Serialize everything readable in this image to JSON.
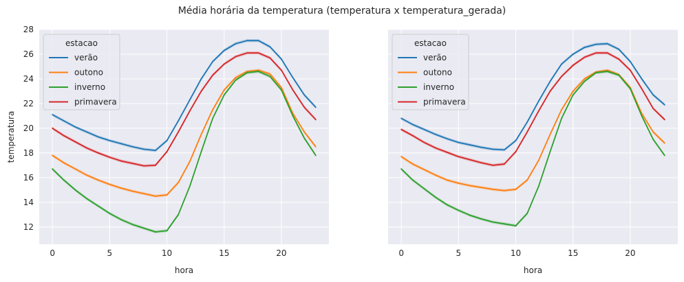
{
  "figure": {
    "title": "Média horária da temperatura (temperatura x temperatura_gerada)"
  },
  "colors": {
    "verão": "#1f77b4",
    "outono": "#ff7f0e",
    "inverno": "#2ca02c",
    "primavera": "#d62728",
    "axes_bg": "#eaeaf2",
    "grid": "#ffffff"
  },
  "chart_data": [
    {
      "type": "line",
      "xlabel": "hora",
      "ylabel": "temperatura",
      "xlim": [
        -1.15,
        24.15
      ],
      "ylim": [
        10.6,
        28.0
      ],
      "xticks": [
        0,
        5,
        10,
        15,
        20
      ],
      "yticks": [
        12,
        14,
        16,
        18,
        20,
        22,
        24,
        26,
        28
      ],
      "grid": true,
      "legend": {
        "title": "estacao",
        "placement": "top-left"
      },
      "x": [
        0,
        1,
        2,
        3,
        4,
        5,
        6,
        7,
        8,
        9,
        10,
        11,
        12,
        13,
        14,
        15,
        16,
        17,
        18,
        19,
        20,
        21,
        22,
        23
      ],
      "series": [
        {
          "name": "verão",
          "values": [
            21.1,
            20.6,
            20.1,
            19.7,
            19.3,
            19.0,
            18.75,
            18.5,
            18.3,
            18.2,
            19.0,
            20.6,
            22.3,
            24.0,
            25.4,
            26.3,
            26.85,
            27.1,
            27.1,
            26.6,
            25.6,
            24.1,
            22.7,
            21.7
          ]
        },
        {
          "name": "outono",
          "values": [
            17.8,
            17.2,
            16.7,
            16.2,
            15.8,
            15.45,
            15.15,
            14.9,
            14.7,
            14.5,
            14.6,
            15.6,
            17.3,
            19.5,
            21.5,
            23.1,
            24.1,
            24.6,
            24.7,
            24.4,
            23.3,
            21.2,
            19.7,
            18.5
          ]
        },
        {
          "name": "inverno",
          "values": [
            16.7,
            15.8,
            15.0,
            14.3,
            13.7,
            13.1,
            12.6,
            12.2,
            11.9,
            11.6,
            11.7,
            13.0,
            15.3,
            18.1,
            20.8,
            22.7,
            23.9,
            24.5,
            24.6,
            24.2,
            23.1,
            21.0,
            19.2,
            17.8
          ]
        },
        {
          "name": "primavera",
          "values": [
            20.0,
            19.4,
            18.9,
            18.4,
            18.0,
            17.65,
            17.35,
            17.15,
            16.95,
            17.0,
            18.1,
            19.7,
            21.4,
            23.0,
            24.3,
            25.2,
            25.8,
            26.1,
            26.1,
            25.7,
            24.7,
            23.1,
            21.7,
            20.7
          ]
        }
      ]
    },
    {
      "type": "line",
      "xlabel": "hora",
      "ylabel": "",
      "xlim": [
        -1.15,
        24.15
      ],
      "ylim": [
        10.6,
        28.0
      ],
      "xticks": [
        0,
        5,
        10,
        15,
        20
      ],
      "yticks": [],
      "grid": true,
      "legend": {
        "title": "estacao",
        "placement": "top-left"
      },
      "x": [
        0,
        1,
        2,
        3,
        4,
        5,
        6,
        7,
        8,
        9,
        10,
        11,
        12,
        13,
        14,
        15,
        16,
        17,
        18,
        19,
        20,
        21,
        22,
        23
      ],
      "series": [
        {
          "name": "verão",
          "values": [
            20.8,
            20.3,
            19.9,
            19.5,
            19.15,
            18.85,
            18.65,
            18.45,
            18.3,
            18.25,
            19.0,
            20.5,
            22.2,
            23.8,
            25.2,
            26.0,
            26.55,
            26.8,
            26.85,
            26.4,
            25.4,
            24.0,
            22.7,
            21.9
          ]
        },
        {
          "name": "outono",
          "values": [
            17.7,
            17.1,
            16.65,
            16.2,
            15.8,
            15.55,
            15.35,
            15.2,
            15.05,
            14.95,
            15.05,
            15.8,
            17.4,
            19.5,
            21.5,
            23.0,
            24.0,
            24.55,
            24.7,
            24.35,
            23.3,
            21.2,
            19.7,
            18.8
          ]
        },
        {
          "name": "inverno",
          "values": [
            16.7,
            15.8,
            15.1,
            14.4,
            13.8,
            13.35,
            12.95,
            12.65,
            12.4,
            12.25,
            12.1,
            13.1,
            15.3,
            18.1,
            20.8,
            22.7,
            23.8,
            24.5,
            24.6,
            24.3,
            23.2,
            21.0,
            19.1,
            17.8
          ]
        },
        {
          "name": "primavera",
          "values": [
            19.9,
            19.4,
            18.85,
            18.4,
            18.05,
            17.7,
            17.45,
            17.2,
            17.0,
            17.1,
            18.1,
            19.7,
            21.4,
            23.0,
            24.2,
            25.1,
            25.75,
            26.1,
            26.1,
            25.6,
            24.7,
            23.2,
            21.6,
            20.7
          ]
        }
      ]
    }
  ]
}
